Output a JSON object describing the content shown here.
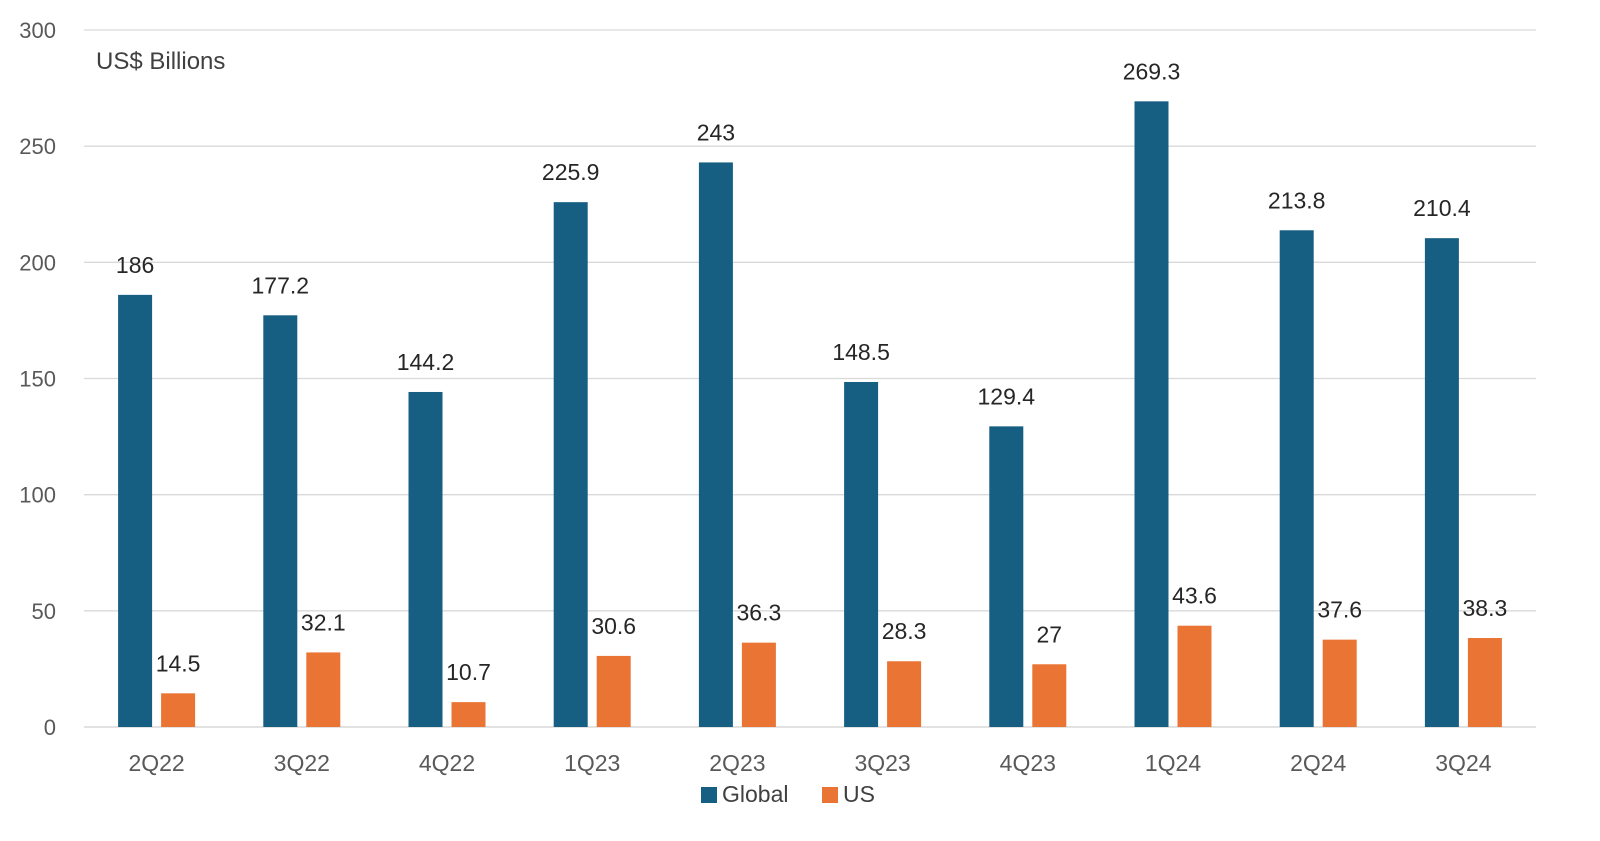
{
  "chart_data": {
    "type": "bar",
    "unit_label": "US$ Billions",
    "categories": [
      "2Q22",
      "3Q22",
      "4Q22",
      "1Q23",
      "2Q23",
      "3Q23",
      "4Q23",
      "1Q24",
      "2Q24",
      "3Q24"
    ],
    "series": [
      {
        "name": "Global",
        "color": "#175e83",
        "values": [
          186,
          177.2,
          144.2,
          225.9,
          243,
          148.5,
          129.4,
          269.3,
          213.8,
          210.4
        ],
        "labels": [
          "186",
          "177.2",
          "144.2",
          "225.9",
          "243",
          "148.5",
          "129.4",
          "269.3",
          "213.8",
          "210.4"
        ]
      },
      {
        "name": "US",
        "color": "#ea7434",
        "values": [
          14.5,
          32.1,
          10.7,
          30.6,
          36.3,
          28.3,
          27,
          43.6,
          37.6,
          38.3
        ],
        "labels": [
          "14.5",
          "32.1",
          "10.7",
          "30.6",
          "36.3",
          "28.3",
          "27",
          "43.6",
          "37.6",
          "38.3"
        ]
      }
    ],
    "ylim": [
      0,
      300
    ],
    "yticks": [
      "0",
      "50",
      "100",
      "150",
      "200",
      "250",
      "300"
    ],
    "grid": true,
    "legend": "bottom"
  }
}
